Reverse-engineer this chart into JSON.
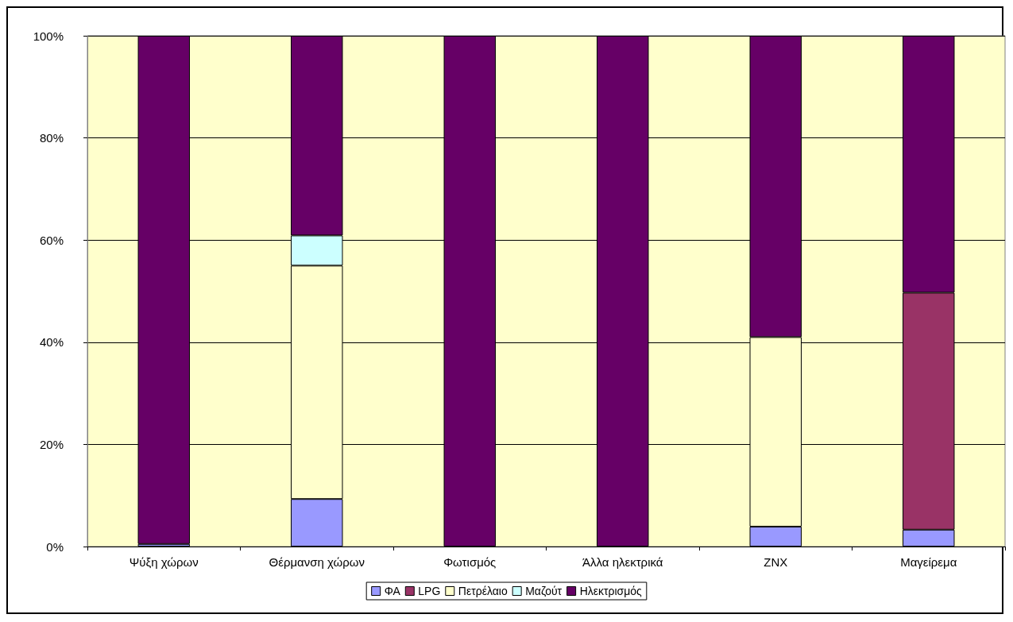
{
  "chart_data": {
    "type": "bar",
    "stacked": true,
    "categories": [
      "Ψύξη χώρων",
      "Θέρμανση χώρων",
      "Φωτισμός",
      "Άλλα ηλεκτρικά",
      "ZNX",
      "Μαγείρεμα"
    ],
    "series": [
      {
        "name": "ΦΑ",
        "color": "#9999ff",
        "values": [
          0.5,
          9.3,
          null,
          null,
          3.9,
          3.3
        ]
      },
      {
        "name": "LPG",
        "color": "#993366",
        "values": [
          null,
          null,
          null,
          null,
          null,
          46.4
        ]
      },
      {
        "name": "Πετρέλαιο",
        "color": "#ffffcc",
        "values": [
          null,
          45.7,
          null,
          null,
          37.1,
          null
        ]
      },
      {
        "name": "Μαζούτ",
        "color": "#ccffff",
        "values": [
          null,
          5.9,
          null,
          null,
          null,
          null
        ]
      },
      {
        "name": "Ηλεκτρισμός",
        "color": "#660066",
        "values": [
          99.5,
          39.1,
          100,
          100,
          59.0,
          50.3
        ]
      }
    ],
    "ylim": [
      0,
      100
    ],
    "yticks": [
      {
        "value": 0,
        "label": "0%"
      },
      {
        "value": 20,
        "label": "20%"
      },
      {
        "value": 40,
        "label": "40%"
      },
      {
        "value": 60,
        "label": "60%"
      },
      {
        "value": 80,
        "label": "80%"
      },
      {
        "value": 100,
        "label": "100%"
      }
    ],
    "grid": "y",
    "legend": "bottom"
  }
}
